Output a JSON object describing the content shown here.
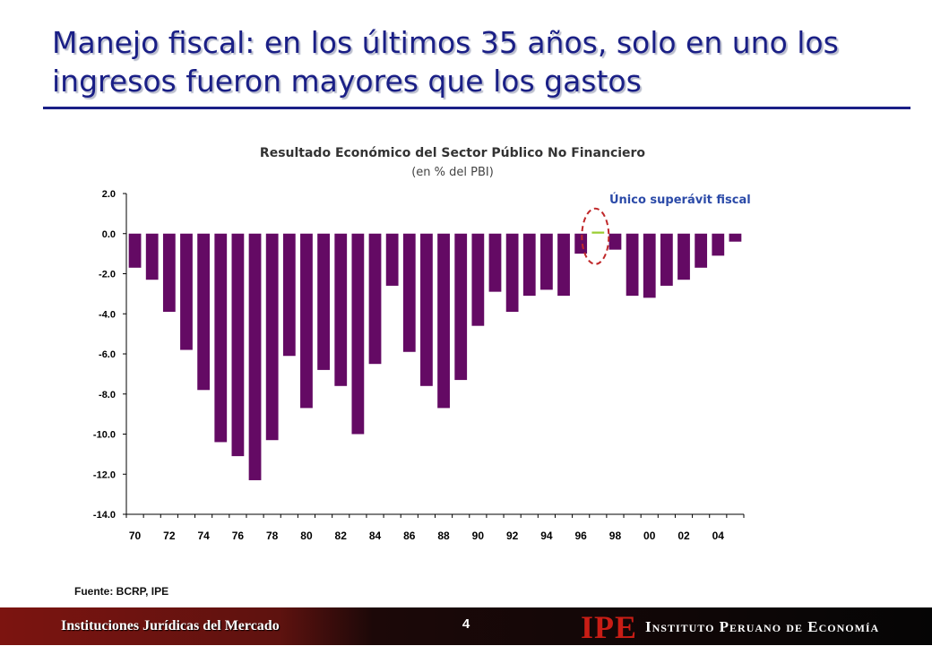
{
  "slide": {
    "title": "Manejo fiscal: en los últimos 35 años, solo en uno los ingresos fueron mayores que los gastos",
    "source": "Fuente: BCRP, IPE",
    "annotation": "Único superávit fiscal",
    "page_number": "4"
  },
  "footer": {
    "left_text": "Instituciones Jurídicas del Mercado",
    "logo": "IPE",
    "org_name": "Instituto Peruano de Economía"
  },
  "colors": {
    "bar": "#640a64",
    "surplus_bar": "#9acd32",
    "highlight_ellipse": "#c0282a"
  },
  "chart_data": {
    "type": "bar",
    "title": "Resultado Económico del Sector Público No Financiero",
    "subtitle": "(en % del PBI)",
    "categories": [
      "70",
      "71",
      "72",
      "73",
      "74",
      "75",
      "76",
      "77",
      "78",
      "79",
      "80",
      "81",
      "82",
      "83",
      "84",
      "85",
      "86",
      "87",
      "88",
      "89",
      "90",
      "91",
      "92",
      "93",
      "94",
      "95",
      "96",
      "97",
      "98",
      "99",
      "00",
      "01",
      "02",
      "03",
      "04",
      "05"
    ],
    "x_tick_labels": [
      "70",
      "72",
      "74",
      "76",
      "78",
      "80",
      "82",
      "84",
      "86",
      "88",
      "90",
      "92",
      "94",
      "96",
      "98",
      "00",
      "02",
      "04"
    ],
    "values": [
      -1.7,
      -2.3,
      -3.9,
      -5.8,
      -7.8,
      -10.4,
      -11.1,
      -12.3,
      -10.3,
      -6.1,
      -8.7,
      -6.8,
      -7.6,
      -10.0,
      -6.5,
      -2.6,
      -5.9,
      -7.6,
      -8.7,
      -7.3,
      -4.6,
      -2.9,
      -3.9,
      -3.1,
      -2.8,
      -3.1,
      -1.0,
      0.1,
      -0.8,
      -3.1,
      -3.2,
      -2.6,
      -2.3,
      -1.7,
      -1.1,
      -0.4
    ],
    "ylim": [
      -14.0,
      2.0
    ],
    "y_ticks": [
      "2.0",
      "0.0",
      "-2.0",
      "-4.0",
      "-6.0",
      "-8.0",
      "-10.0",
      "-12.0",
      "-14.0"
    ],
    "highlight_category": "97",
    "grid": false,
    "legend": "none"
  }
}
